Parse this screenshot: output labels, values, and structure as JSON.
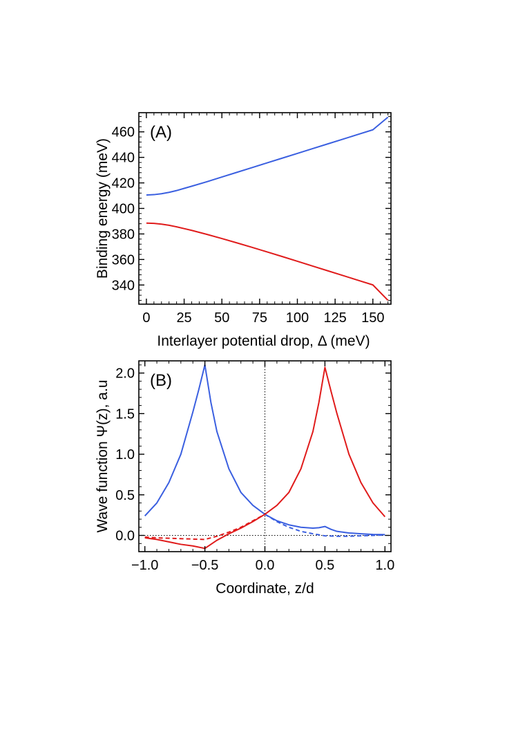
{
  "chart_data": [
    {
      "type": "line",
      "panel_label": "(A)",
      "xlabel": "Interlayer potential drop, Δ (meV)",
      "ylabel": "Binding energy (meV)",
      "xlim": [
        -5,
        162
      ],
      "ylim": [
        325,
        475
      ],
      "xticks": [
        0,
        25,
        50,
        75,
        100,
        125,
        150
      ],
      "yticks": [
        340,
        360,
        380,
        400,
        420,
        440,
        460
      ],
      "grid": false,
      "series": [
        {
          "name": "upper branch",
          "color": "#3a5fe0",
          "dashed": false,
          "x": [
            0,
            5,
            10,
            15,
            20,
            25,
            30,
            40,
            50,
            60,
            70,
            80,
            90,
            100,
            110,
            120,
            130,
            140,
            150,
            160
          ],
          "y": [
            410.5,
            410.8,
            411.5,
            412.6,
            414.0,
            415.7,
            417.4,
            420.9,
            424.6,
            428.3,
            432.0,
            435.7,
            439.4,
            443.1,
            446.8,
            450.5,
            454.2,
            457.9,
            461.6,
            471.5
          ]
        },
        {
          "name": "lower branch",
          "color": "#e01b1b",
          "dashed": false,
          "x": [
            0,
            5,
            10,
            15,
            20,
            25,
            30,
            40,
            50,
            60,
            70,
            80,
            90,
            100,
            110,
            120,
            130,
            140,
            150,
            160
          ],
          "y": [
            388.5,
            388.3,
            387.7,
            386.8,
            385.6,
            384.2,
            382.8,
            379.7,
            376.4,
            373.0,
            369.5,
            365.9,
            362.3,
            358.6,
            354.9,
            351.2,
            347.5,
            343.8,
            340.1,
            328.0
          ]
        }
      ]
    },
    {
      "type": "line",
      "panel_label": "(B)",
      "xlabel": "Coordinate, z/d",
      "ylabel": "Wave function Ψ(z), a.u",
      "xlim": [
        -1.05,
        1.05
      ],
      "ylim": [
        -0.2,
        2.15
      ],
      "xticks": [
        -1.0,
        -0.5,
        0.0,
        0.5,
        1.0
      ],
      "xtick_labels": [
        "−1.0",
        "−0.5",
        "0.0",
        "0.5",
        "1.0"
      ],
      "yticks": [
        0.0,
        0.5,
        1.0,
        1.5,
        2.0
      ],
      "ytick_labels": [
        "0.0",
        "0.5",
        "1.0",
        "1.5",
        "2.0"
      ],
      "grid": false,
      "reference_lines": [
        {
          "orientation": "vertical",
          "value": 0.0,
          "style": "dotted"
        },
        {
          "orientation": "horizontal",
          "value": 0.0,
          "style": "dotted"
        }
      ],
      "series": [
        {
          "name": "blue solid",
          "color": "#3a5fe0",
          "dashed": false,
          "x": [
            -1.0,
            -0.9,
            -0.8,
            -0.7,
            -0.6,
            -0.55,
            -0.5,
            -0.45,
            -0.4,
            -0.3,
            -0.2,
            -0.1,
            0.0,
            0.1,
            0.2,
            0.3,
            0.4,
            0.45,
            0.5,
            0.55,
            0.6,
            0.7,
            0.8,
            0.9,
            1.0
          ],
          "y": [
            0.24,
            0.4,
            0.65,
            1.0,
            1.52,
            1.8,
            2.1,
            1.64,
            1.28,
            0.82,
            0.53,
            0.37,
            0.26,
            0.18,
            0.13,
            0.1,
            0.09,
            0.095,
            0.11,
            0.075,
            0.05,
            0.03,
            0.02,
            0.012,
            0.01
          ]
        },
        {
          "name": "blue dashed",
          "color": "#3a5fe0",
          "dashed": true,
          "x": [
            0.0,
            0.1,
            0.2,
            0.3,
            0.4,
            0.5,
            0.6,
            0.7,
            0.8,
            0.9,
            1.0
          ],
          "y": [
            0.26,
            0.17,
            0.1,
            0.05,
            0.02,
            -0.005,
            -0.01,
            -0.01,
            -0.005,
            0.0,
            0.005
          ]
        },
        {
          "name": "red solid",
          "color": "#e01b1b",
          "dashed": false,
          "x": [
            -1.0,
            -0.9,
            -0.8,
            -0.7,
            -0.6,
            -0.5,
            -0.45,
            -0.4,
            -0.3,
            -0.2,
            -0.1,
            0.0,
            0.1,
            0.2,
            0.3,
            0.4,
            0.45,
            0.5,
            0.55,
            0.6,
            0.7,
            0.8,
            0.9,
            1.0
          ],
          "y": [
            -0.03,
            -0.05,
            -0.08,
            -0.11,
            -0.13,
            -0.16,
            -0.11,
            -0.06,
            0.02,
            0.09,
            0.17,
            0.26,
            0.37,
            0.53,
            0.82,
            1.28,
            1.64,
            2.07,
            1.78,
            1.5,
            1.0,
            0.65,
            0.4,
            0.23
          ]
        },
        {
          "name": "red dashed",
          "color": "#e01b1b",
          "dashed": true,
          "x": [
            -1.0,
            -0.9,
            -0.8,
            -0.7,
            -0.6,
            -0.5,
            -0.4,
            -0.3,
            -0.2,
            -0.1,
            0.0
          ],
          "y": [
            -0.02,
            -0.03,
            -0.035,
            -0.04,
            -0.045,
            -0.05,
            -0.01,
            0.04,
            0.1,
            0.18,
            0.26
          ]
        }
      ]
    }
  ]
}
